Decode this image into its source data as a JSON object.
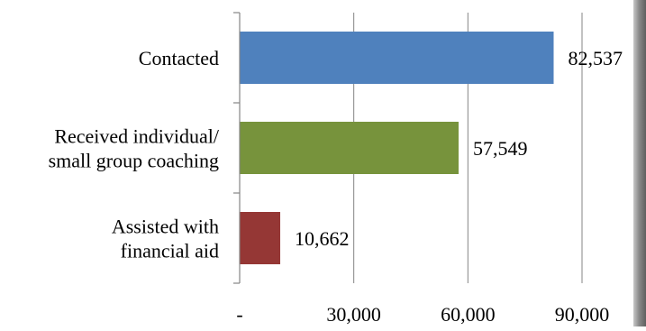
{
  "chart_data": {
    "type": "bar",
    "orientation": "horizontal",
    "categories": [
      [
        "Contacted"
      ],
      [
        "Received individual/",
        "small group coaching"
      ],
      [
        "Assisted with",
        "financial aid"
      ]
    ],
    "values": [
      82537,
      57549,
      10662
    ],
    "value_labels": [
      "82,537",
      "57,549",
      "10,662"
    ],
    "colors": [
      "#4F81BD",
      "#77933C",
      "#953735"
    ],
    "xlim": [
      0,
      90000
    ],
    "xticks": [
      0,
      30000,
      60000,
      90000
    ],
    "xtick_labels": [
      "-",
      "30,000",
      "60,000",
      "90,000"
    ],
    "grid": true,
    "legend": "none",
    "title": "",
    "xlabel": "",
    "ylabel": ""
  }
}
